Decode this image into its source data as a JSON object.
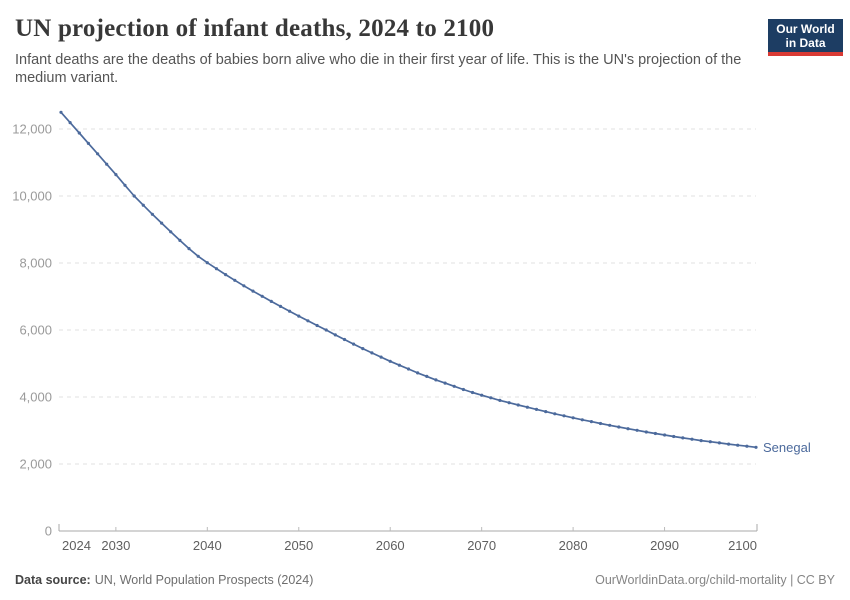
{
  "header": {
    "title": "UN projection of infant deaths, 2024 to 2100",
    "subtitle": "Infant deaths are the deaths of babies born alive who die in their first year of life. This is the UN's projection of the medium variant.",
    "logo": {
      "line1": "Our World",
      "line2": "in Data",
      "bg_color": "#1d3d63",
      "bar_color": "#d93a34",
      "text_color": "#ffffff"
    }
  },
  "chart_data": {
    "type": "line",
    "title": "UN projection of infant deaths, 2024 to 2100",
    "xlabel": "",
    "ylabel": "",
    "x_min": 2024,
    "x_max": 2100,
    "ylim": [
      0,
      12500
    ],
    "x_ticks": [
      2024,
      2030,
      2040,
      2050,
      2060,
      2070,
      2080,
      2090,
      2100
    ],
    "y_ticks": [
      0,
      2000,
      4000,
      6000,
      8000,
      10000,
      12000
    ],
    "grid": "horizontal-dashed",
    "marker": "circle",
    "legend_position": "end-of-line",
    "years": [
      2024,
      2025,
      2026,
      2027,
      2028,
      2029,
      2030,
      2031,
      2032,
      2033,
      2034,
      2035,
      2036,
      2037,
      2038,
      2039,
      2040,
      2041,
      2042,
      2043,
      2044,
      2045,
      2046,
      2047,
      2048,
      2049,
      2050,
      2051,
      2052,
      2053,
      2054,
      2055,
      2056,
      2057,
      2058,
      2059,
      2060,
      2061,
      2062,
      2063,
      2064,
      2065,
      2066,
      2067,
      2068,
      2069,
      2070,
      2071,
      2072,
      2073,
      2074,
      2075,
      2076,
      2077,
      2078,
      2079,
      2080,
      2081,
      2082,
      2083,
      2084,
      2085,
      2086,
      2087,
      2088,
      2089,
      2090,
      2091,
      2092,
      2093,
      2094,
      2095,
      2096,
      2097,
      2098,
      2099,
      2100
    ],
    "series": [
      {
        "name": "Senegal",
        "color": "#4C6A9C",
        "values": [
          12500,
          12190,
          11880,
          11570,
          11260,
          10950,
          10640,
          10320,
          10000,
          9725,
          9455,
          9190,
          8930,
          8675,
          8430,
          8200,
          8010,
          7830,
          7655,
          7485,
          7320,
          7160,
          7005,
          6855,
          6705,
          6560,
          6415,
          6275,
          6135,
          6000,
          5855,
          5715,
          5580,
          5445,
          5315,
          5190,
          5065,
          4950,
          4835,
          4720,
          4615,
          4510,
          4415,
          4320,
          4225,
          4135,
          4055,
          3975,
          3900,
          3830,
          3760,
          3695,
          3630,
          3565,
          3500,
          3440,
          3380,
          3320,
          3265,
          3210,
          3155,
          3105,
          3055,
          3005,
          2955,
          2910,
          2865,
          2820,
          2780,
          2740,
          2700,
          2665,
          2630,
          2595,
          2560,
          2530,
          2500
        ]
      }
    ]
  },
  "footer": {
    "source_label": "Data source:",
    "source_value": "UN, World Population Prospects (2024)",
    "credit": "OurWorldinData.org/child-mortality | CC BY"
  }
}
